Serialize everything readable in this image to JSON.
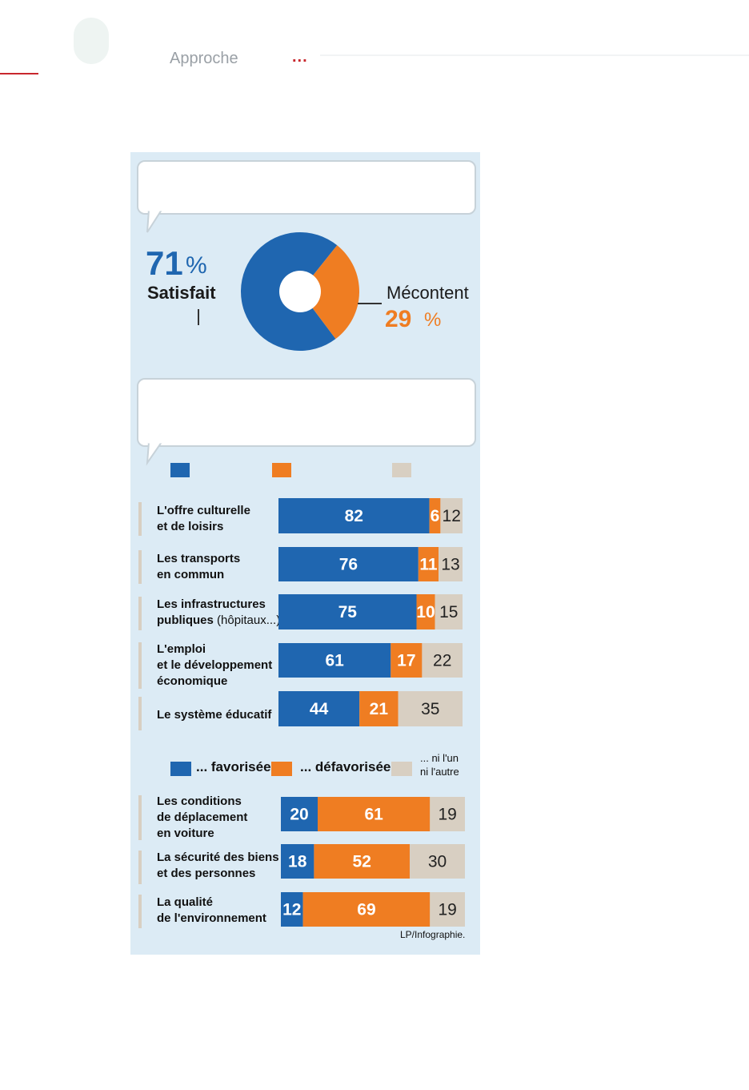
{
  "header": {
    "section": "Approche",
    "section_marker": "..."
  },
  "colors": {
    "favorable": "#1f66b0",
    "unfavorable": "#ef7d22",
    "neutral": "#d8cfc2",
    "panel": "#dcebf5"
  },
  "chart_data": [
    {
      "type": "pie",
      "slices": [
        {
          "name": "Satisfait",
          "value": 71,
          "value_text": "71"
        },
        {
          "name": "Mécontent",
          "value": 29,
          "value_text": "29"
        }
      ],
      "unit": "%"
    },
    {
      "type": "bar",
      "stacked": true,
      "horizontal": true,
      "series": [
        {
          "name": "",
          "values": [
            82,
            76,
            75,
            61,
            44
          ]
        },
        {
          "name": "",
          "values": [
            6,
            11,
            10,
            17,
            21
          ]
        },
        {
          "name": "",
          "values": [
            12,
            13,
            15,
            22,
            35
          ]
        }
      ],
      "categories": [
        {
          "line1": "L'offre culturelle",
          "line2": "et de loisirs",
          "line3": ""
        },
        {
          "line1": "Les transports",
          "line2": "en commun",
          "line3": ""
        },
        {
          "line1": "Les infrastructures",
          "line2": "publiques",
          "line2_extra": " (hôpitaux...)",
          "line3": ""
        },
        {
          "line1": "L'emploi",
          "line2": "et le développement",
          "line3": "économique"
        },
        {
          "line1": "Le système éducatif",
          "line2": "",
          "line3": ""
        }
      ],
      "xlim": [
        0,
        100
      ]
    },
    {
      "type": "bar",
      "stacked": true,
      "horizontal": true,
      "legend": {
        "favorable": "... favorisée",
        "unfavorable": "... défavorisée",
        "neutral_line1": "... ni l'un",
        "neutral_line2": "ni l'autre"
      },
      "series": [
        {
          "name": "... favorisée",
          "values": [
            20,
            18,
            12
          ]
        },
        {
          "name": "... défavorisée",
          "values": [
            61,
            52,
            69
          ]
        },
        {
          "name": "... ni l'un ni l'autre",
          "values": [
            19,
            30,
            19
          ]
        }
      ],
      "categories": [
        {
          "line1": "Les conditions",
          "line2": "de déplacement",
          "line3": "en voiture"
        },
        {
          "line1": "La sécurité des biens",
          "line2": "et des personnes",
          "line3": ""
        },
        {
          "line1": "La qualité",
          "line2": "de l'environnement",
          "line3": ""
        }
      ],
      "xlim": [
        0,
        100
      ]
    }
  ],
  "credit": "LP/Infographie."
}
